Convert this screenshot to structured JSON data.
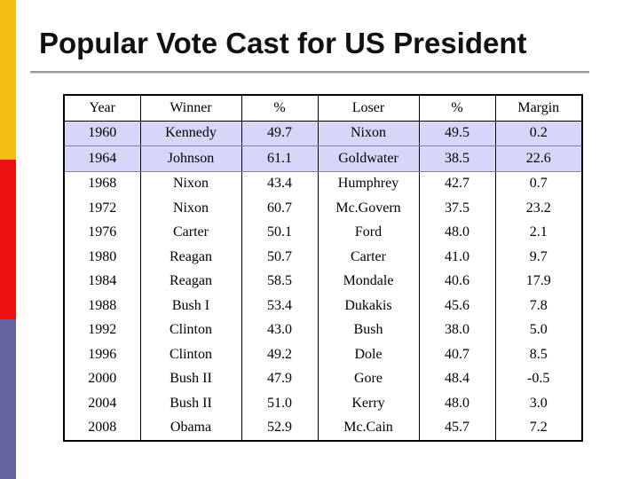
{
  "slide": {
    "title": "Popular Vote Cast for US President",
    "accent_colors": {
      "yellow": "#f5bf13",
      "red": "#ee1111",
      "blue": "#6464a2",
      "highlight": "#d6d6f8"
    }
  },
  "table": {
    "headers": [
      "Year",
      "Winner",
      "%",
      "Loser",
      "%",
      "Margin"
    ],
    "rows": [
      [
        "1960",
        "Kennedy",
        "49.7",
        "Nixon",
        "49.5",
        "0.2"
      ],
      [
        "1964",
        "Johnson",
        "61.1",
        "Goldwater",
        "38.5",
        "22.6"
      ],
      [
        "1968",
        "Nixon",
        "43.4",
        "Humphrey",
        "42.7",
        "0.7"
      ],
      [
        "1972",
        "Nixon",
        "60.7",
        "Mc.Govern",
        "37.5",
        "23.2"
      ],
      [
        "1976",
        "Carter",
        "50.1",
        "Ford",
        "48.0",
        "2.1"
      ],
      [
        "1980",
        "Reagan",
        "50.7",
        "Carter",
        "41.0",
        "9.7"
      ],
      [
        "1984",
        "Reagan",
        "58.5",
        "Mondale",
        "40.6",
        "17.9"
      ],
      [
        "1988",
        "Bush I",
        "53.4",
        "Dukakis",
        "45.6",
        "7.8"
      ],
      [
        "1992",
        "Clinton",
        "43.0",
        "Bush",
        "38.0",
        "5.0"
      ],
      [
        "1996",
        "Clinton",
        "49.2",
        "Dole",
        "40.7",
        "8.5"
      ],
      [
        "2000",
        "Bush II",
        "47.9",
        "Gore",
        "48.4",
        "-0.5"
      ],
      [
        "2004",
        "Bush II",
        "51.0",
        "Kerry",
        "48.0",
        "3.0"
      ],
      [
        "2008",
        "Obama",
        "52.9",
        "Mc.Cain",
        "45.7",
        "7.2"
      ]
    ]
  }
}
